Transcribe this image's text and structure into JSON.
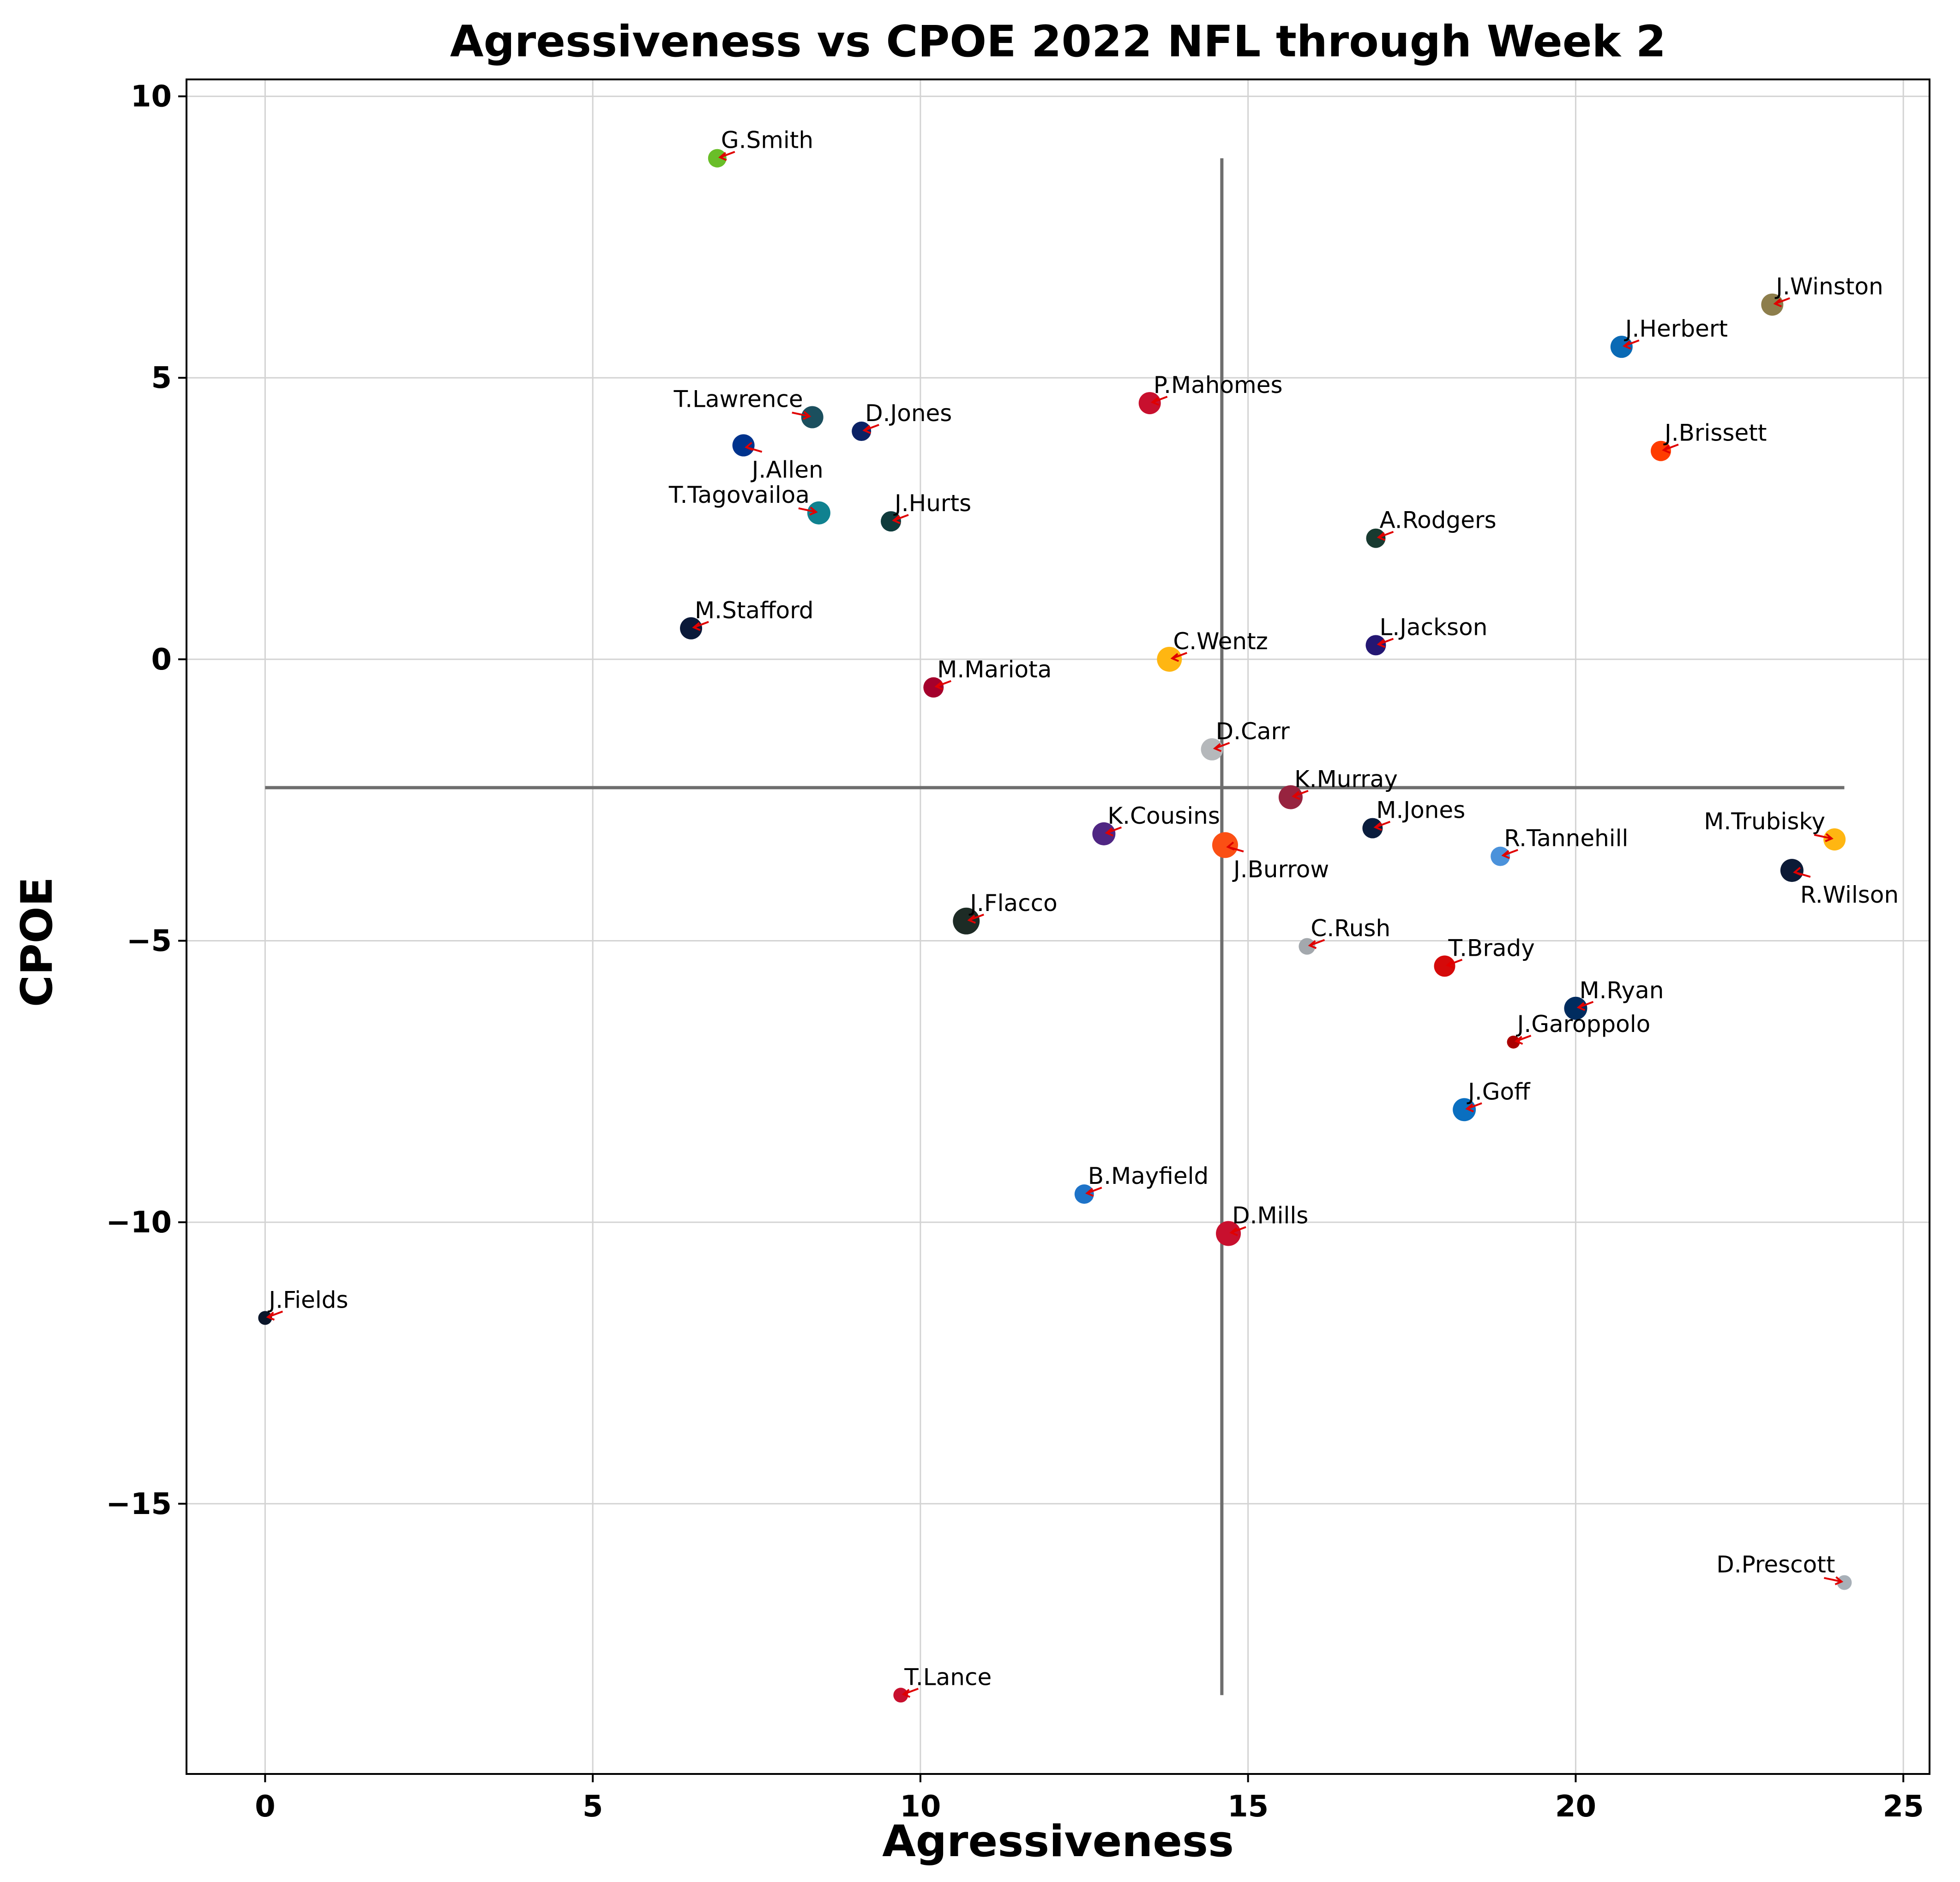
{
  "chart_data": {
    "type": "scatter",
    "title": "Agressiveness vs CPOE 2022 NFL through Week 2",
    "xlabel": "Agressiveness",
    "ylabel": "CPOE",
    "xlim": [
      -1.2,
      25.4
    ],
    "ylim": [
      -19.8,
      10.3
    ],
    "xticks": [
      0,
      5,
      10,
      15,
      20,
      25
    ],
    "yticks": [
      10,
      5,
      0,
      -5,
      -10,
      -15
    ],
    "grid": true,
    "reference_lines": {
      "vertical": {
        "x": 14.6,
        "y_range": [
          -18.4,
          8.9
        ]
      },
      "horizontal": {
        "y": -2.28,
        "x_range": [
          0,
          24.1
        ]
      }
    },
    "points": [
      {
        "name": "G.Smith",
        "x": 6.9,
        "y": 8.9,
        "color": "#69be28",
        "label_pos": "above-right"
      },
      {
        "name": "J.Winston",
        "x": 23.0,
        "y": 6.3,
        "color": "#8d7e4c",
        "label_pos": "above-right"
      },
      {
        "name": "J.Herbert",
        "x": 20.7,
        "y": 5.55,
        "color": "#0a6ab5",
        "label_pos": "above-right"
      },
      {
        "name": "P.Mahomes",
        "x": 13.5,
        "y": 4.55,
        "color": "#c8102e",
        "label_pos": "above-right"
      },
      {
        "name": "T.Lawrence",
        "x": 8.35,
        "y": 4.3,
        "color": "#1b4f5e",
        "label_pos": "above-left"
      },
      {
        "name": "D.Jones",
        "x": 9.1,
        "y": 4.05,
        "color": "#0b2265",
        "label_pos": "above-right"
      },
      {
        "name": "J.Allen",
        "x": 7.3,
        "y": 3.8,
        "color": "#00338d",
        "label_pos": "below-right"
      },
      {
        "name": "J.Brissett",
        "x": 21.3,
        "y": 3.7,
        "color": "#ff3c00",
        "label_pos": "above-right"
      },
      {
        "name": "T.Tagovailoa",
        "x": 8.45,
        "y": 2.6,
        "color": "#108290",
        "label_pos": "above-left"
      },
      {
        "name": "J.Hurts",
        "x": 9.55,
        "y": 2.45,
        "color": "#0f3b3c",
        "label_pos": "above-right"
      },
      {
        "name": "A.Rodgers",
        "x": 16.95,
        "y": 2.15,
        "color": "#183a30",
        "label_pos": "above-right"
      },
      {
        "name": "M.Stafford",
        "x": 6.5,
        "y": 0.55,
        "color": "#0a1939",
        "label_pos": "above-right"
      },
      {
        "name": "L.Jackson",
        "x": 16.95,
        "y": 0.25,
        "color": "#241773",
        "label_pos": "above-right"
      },
      {
        "name": "C.Wentz",
        "x": 13.8,
        "y": 0.0,
        "color": "#ffb612",
        "label_pos": "above-right"
      },
      {
        "name": "M.Mariota",
        "x": 10.2,
        "y": -0.5,
        "color": "#a5002c",
        "label_pos": "above-right"
      },
      {
        "name": "D.Carr",
        "x": 14.45,
        "y": -1.6,
        "color": "#b5b8bb",
        "label_pos": "above-right"
      },
      {
        "name": "K.Murray",
        "x": 15.65,
        "y": -2.45,
        "color": "#97233f",
        "label_pos": "above-right"
      },
      {
        "name": "K.Cousins",
        "x": 12.8,
        "y": -3.1,
        "color": "#4f2683",
        "label_pos": "above-right"
      },
      {
        "name": "J.Burrow",
        "x": 14.65,
        "y": -3.3,
        "color": "#fb4f14",
        "label_pos": "below-right"
      },
      {
        "name": "M.Jones",
        "x": 16.9,
        "y": -3.0,
        "color": "#0a1d3d",
        "label_pos": "above-right"
      },
      {
        "name": "R.Tannehill",
        "x": 18.85,
        "y": -3.5,
        "color": "#4b92db",
        "label_pos": "above-right"
      },
      {
        "name": "M.Trubisky",
        "x": 23.95,
        "y": -3.2,
        "color": "#ffb612",
        "label_pos": "above-left"
      },
      {
        "name": "R.Wilson",
        "x": 23.3,
        "y": -3.75,
        "color": "#0c1a36",
        "label_pos": "below-right"
      },
      {
        "name": "J.Flacco",
        "x": 10.7,
        "y": -4.65,
        "color": "#1d2b25",
        "label_pos": "above-right"
      },
      {
        "name": "C.Rush",
        "x": 15.9,
        "y": -5.1,
        "color": "#a3a8ad",
        "label_pos": "above-right"
      },
      {
        "name": "T.Brady",
        "x": 18.0,
        "y": -5.45,
        "color": "#d50a0a",
        "label_pos": "above-right"
      },
      {
        "name": "M.Ryan",
        "x": 20.0,
        "y": -6.2,
        "color": "#002c5f",
        "label_pos": "above-right"
      },
      {
        "name": "J.Garoppolo",
        "x": 19.05,
        "y": -6.8,
        "color": "#aa0000",
        "label_pos": "above-right"
      },
      {
        "name": "J.Goff",
        "x": 18.3,
        "y": -8.0,
        "color": "#0a6fc0",
        "label_pos": "above-right"
      },
      {
        "name": "B.Mayfield",
        "x": 12.5,
        "y": -9.5,
        "color": "#1e73c8",
        "label_pos": "above-right"
      },
      {
        "name": "D.Mills",
        "x": 14.7,
        "y": -10.2,
        "color": "#c8102e",
        "label_pos": "above-right"
      },
      {
        "name": "J.Fields",
        "x": 0.0,
        "y": -11.7,
        "color": "#0b162a",
        "label_pos": "above-right"
      },
      {
        "name": "D.Prescott",
        "x": 24.1,
        "y": -16.4,
        "color": "#a8b0b8",
        "label_pos": "above-left"
      },
      {
        "name": "T.Lance",
        "x": 9.7,
        "y": -18.4,
        "color": "#c8102e",
        "label_pos": "above-right"
      }
    ],
    "point_sizes": {
      "G.Smith": 20,
      "J.Winston": 24,
      "J.Herbert": 24,
      "P.Mahomes": 24,
      "T.Lawrence": 24,
      "D.Jones": 21,
      "J.Allen": 24,
      "J.Brissett": 22,
      "T.Tagovailoa": 25,
      "J.Hurts": 22,
      "A.Rodgers": 21,
      "M.Stafford": 24,
      "L.Jackson": 22,
      "C.Wentz": 27,
      "M.Mariota": 22,
      "D.Carr": 24,
      "K.Murray": 26,
      "K.Cousins": 25,
      "J.Burrow": 28,
      "M.Jones": 22,
      "R.Tannehill": 21,
      "M.Trubisky": 24,
      "R.Wilson": 25,
      "J.Flacco": 29,
      "C.Rush": 18,
      "T.Brady": 23,
      "M.Ryan": 25,
      "J.Garoppolo": 14,
      "J.Goff": 25,
      "B.Mayfield": 21,
      "D.Mills": 27,
      "J.Fields": 15,
      "D.Prescott": 16,
      "T.Lance": 16
    }
  }
}
